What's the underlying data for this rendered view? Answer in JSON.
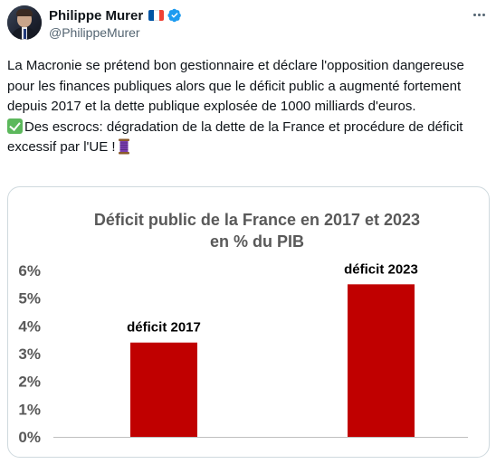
{
  "author": {
    "display_name": "Philippe Murer",
    "handle": "@PhilippeMurer",
    "flag_colors": [
      "#0055a4",
      "#ffffff",
      "#ef4135"
    ],
    "verified_color": "#1d9bf0",
    "icons": {
      "avatar": "avatar-photo",
      "flag": "france-flag-icon",
      "verified": "verified-badge-icon",
      "more": "more-dots-icon"
    }
  },
  "tweet": {
    "paragraph1": "La Macronie se prétend bon gestionnaire et déclare l'opposition dangereuse pour les finances publiques  alors que le déficit public a augmenté fortement depuis 2017 et la dette publique explosée de 1000 milliards d'euros.",
    "paragraph2": "Des escrocs: dégradation de la dette de la France et procédure de déficit excessif par l'UE !",
    "emoji_start": "check-mark-emoji",
    "emoji_end": "thread-spool-emoji"
  },
  "chart_data": {
    "type": "bar",
    "title": "Déficit public de la France en 2017 et 2023",
    "subtitle": "en % du PIB",
    "categories": [
      "déficit 2017",
      "déficit 2023"
    ],
    "values": [
      3.4,
      5.5
    ],
    "ylim": [
      0,
      6
    ],
    "yticks": [
      "0%",
      "1%",
      "2%",
      "3%",
      "4%",
      "5%",
      "6%"
    ],
    "bar_color": "#c00000",
    "grid": false,
    "legend": "none"
  }
}
